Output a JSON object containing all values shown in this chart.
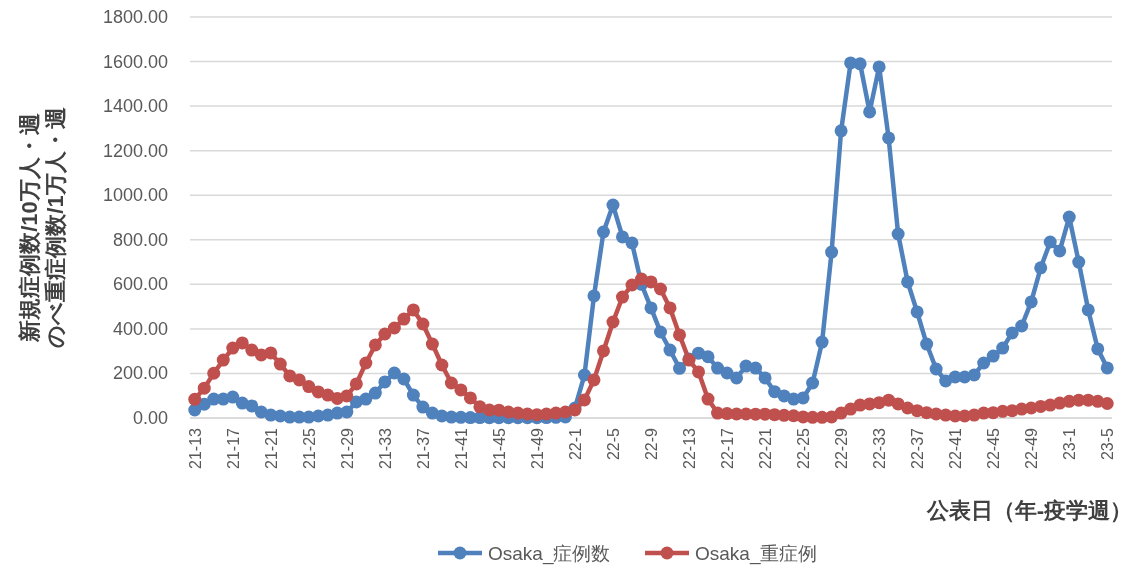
{
  "chart_data": {
    "type": "line",
    "categories": [
      "21-13",
      null,
      null,
      null,
      "21-17",
      null,
      null,
      null,
      "21-21",
      null,
      null,
      null,
      "21-25",
      null,
      null,
      null,
      "21-29",
      null,
      null,
      null,
      "21-33",
      null,
      null,
      null,
      "21-37",
      null,
      null,
      null,
      "21-41",
      null,
      null,
      null,
      "21-45",
      null,
      null,
      null,
      "21-49",
      null,
      null,
      null,
      "22-1",
      null,
      null,
      null,
      "22-5",
      null,
      null,
      null,
      "22-9",
      null,
      null,
      null,
      "22-13",
      null,
      null,
      null,
      "22-17",
      null,
      null,
      null,
      "22-21",
      null,
      null,
      null,
      "22-25",
      null,
      null,
      null,
      "22-29",
      null,
      null,
      null,
      "22-33",
      null,
      null,
      null,
      "22-37",
      null,
      null,
      null,
      "22-41",
      null,
      null,
      null,
      "22-45",
      null,
      null,
      null,
      "22-49",
      null,
      null,
      null,
      "23-1",
      null,
      null,
      null,
      "23-5"
    ],
    "series": [
      {
        "name": "Osaka_症例数",
        "color": "#4f81bd",
        "values": [
          36,
          62,
          85,
          85,
          94,
          67,
          54,
          27,
          13,
          9,
          4,
          4,
          4,
          9,
          13,
          22,
          27,
          72,
          85,
          112,
          162,
          202,
          175,
          103,
          49,
          22,
          9,
          4,
          3,
          2,
          2,
          1,
          1,
          1,
          1,
          1,
          1,
          2,
          3,
          5,
          45,
          193,
          548,
          835,
          956,
          813,
          786,
          600,
          494,
          386,
          305,
          223,
          265,
          291,
          275,
          224,
          202,
          180,
          233,
          224,
          180,
          118,
          99,
          85,
          90,
          157,
          341,
          745,
          1289,
          1594,
          1590,
          1374,
          1576,
          1257,
          826,
          611,
          476,
          332,
          220,
          166,
          184,
          184,
          193,
          247,
          278,
          314,
          382,
          413,
          521,
          674,
          790,
          750,
          902,
          700,
          485,
          310,
          225
        ]
      },
      {
        "name": "Osaka_重症例",
        "color": "#c0504d",
        "values": [
          84,
          134,
          201,
          260,
          314,
          337,
          305,
          283,
          292,
          242,
          189,
          171,
          141,
          117,
          103,
          88,
          99,
          153,
          247,
          328,
          377,
          404,
          444,
          485,
          422,
          332,
          238,
          157,
          126,
          90,
          50,
          36,
          35,
          27,
          22,
          18,
          15,
          18,
          22,
          27,
          36,
          81,
          171,
          301,
          431,
          543,
          597,
          624,
          611,
          579,
          494,
          373,
          260,
          207,
          85,
          22,
          20,
          18,
          18,
          17,
          17,
          15,
          12,
          10,
          5,
          3,
          3,
          5,
          22,
          40,
          58,
          63,
          69,
          80,
          63,
          45,
          33,
          24,
          18,
          13,
          9,
          9,
          13,
          22,
          24,
          30,
          33,
          40,
          45,
          52,
          58,
          67,
          75,
          80,
          80,
          75,
          65
        ]
      }
    ],
    "xlabel": "公表日（年-疫学週）",
    "ylabel": [
      "新規症例数/10万人・週",
      "のべ重症例数/1万人・週"
    ],
    "ylim": [
      0,
      1800
    ],
    "yticks": [
      {
        "value": 0,
        "label": "0.00"
      },
      {
        "value": 200,
        "label": "200.00"
      },
      {
        "value": 400,
        "label": "400.00"
      },
      {
        "value": 600,
        "label": "600.00"
      },
      {
        "value": 800,
        "label": "800.00"
      },
      {
        "value": 1000,
        "label": "1000.00"
      },
      {
        "value": 1200,
        "label": "1200.00"
      },
      {
        "value": 1400,
        "label": "1400.00"
      },
      {
        "value": 1600,
        "label": "1600.00"
      },
      {
        "value": 1800,
        "label": "1800.00"
      }
    ],
    "grid": "y",
    "legend": "bottom",
    "marker": "circle",
    "line_style": "solid"
  }
}
